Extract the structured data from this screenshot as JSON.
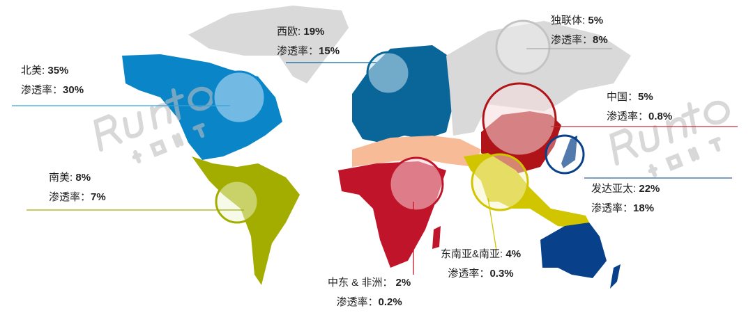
{
  "watermark": {
    "logo": "Runto",
    "sub": "洛图科技"
  },
  "colors": {
    "north_america": "#0a86c8",
    "western_europe": "#0a6699",
    "cis": "#d9d9d9",
    "china": "#b01419",
    "developed_apac": "#08418a",
    "southeast_south_asia": "#d1c500",
    "middle_east_africa": "#c0142a",
    "south_america": "#a3ad00",
    "north_africa_me": "#f7bb98"
  },
  "regions": [
    {
      "id": "north_america",
      "name": "北美",
      "share": "35%",
      "penetration_label": "渗透率",
      "penetration": "30%"
    },
    {
      "id": "western_europe",
      "name": "西欧",
      "share": "19%",
      "penetration_label": "渗透率",
      "penetration": "15%"
    },
    {
      "id": "cis",
      "name": "独联体",
      "share": "5%",
      "penetration_label": "渗透率",
      "penetration": "8%"
    },
    {
      "id": "china",
      "name": "中国",
      "share": "5%",
      "penetration_label": "渗透率",
      "penetration": "0.8%"
    },
    {
      "id": "south_america",
      "name": "南美",
      "share": "8%",
      "penetration_label": "渗透率",
      "penetration": "7%"
    },
    {
      "id": "developed_apac",
      "name": "发达亚太",
      "share": "22%",
      "penetration_label": "渗透率",
      "penetration": "18%"
    },
    {
      "id": "southeast_south_asia",
      "name": "东南亚&南亚",
      "share": "4%",
      "penetration_label": "渗透率",
      "penetration": "0.3%"
    },
    {
      "id": "middle_east_africa",
      "name": "中东 & 非洲",
      "share": "2%",
      "penetration_label": "渗透率",
      "penetration": "0.2%"
    }
  ]
}
